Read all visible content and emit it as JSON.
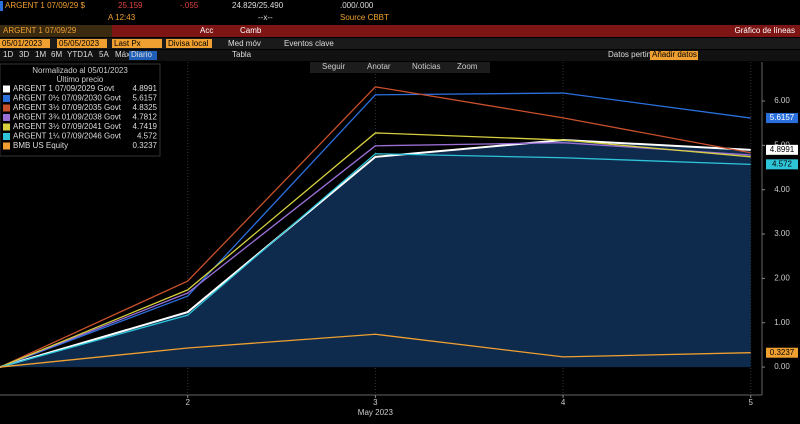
{
  "ui": {
    "quote": {
      "ticker": "ARGENT 1 07/09/29 $",
      "price": "25.159",
      "change": "-.055",
      "bid_ask": "24.829/25.490",
      "yield": ".000/.000",
      "time": "A 12:43",
      "size": "--x--",
      "source": "Source CBBT"
    },
    "toolbar": {
      "security": "ARGENT 1 07/09/29",
      "actions": "Acc",
      "change": "Camb",
      "view": "Gráfico de líneas"
    },
    "settings": {
      "start": "05/01/2023",
      "end": "05/05/2023",
      "field": "Last Px",
      "currency": "Divisa local",
      "moving_avg": "Med móv",
      "events": "Eventos clave"
    },
    "periods": [
      "1D",
      "3D",
      "1M",
      "6M",
      "YTD",
      "1A",
      "5A",
      "Máx",
      "Diario"
    ],
    "table": "Tabla",
    "relevant": "Datos pertinent",
    "add_data": "Añadir datos",
    "chart_tools": [
      "Seguir",
      "Anotar",
      "Noticias",
      "Zoom"
    ],
    "legend_title": "Normalizado al 05/01/2023",
    "legend_subtitle": "Último precio"
  },
  "chart_data": {
    "type": "line",
    "xlabel": "May 2023",
    "x": [
      1,
      2,
      3,
      4,
      5
    ],
    "xlim": [
      1,
      5.06
    ],
    "xticks": [
      2,
      3,
      4,
      5
    ],
    "ylim": [
      -0.63,
      6.88
    ],
    "yticks": [
      {
        "value": 0,
        "label": "0.00"
      },
      {
        "value": 1,
        "label": "1.00"
      },
      {
        "value": 2,
        "label": "2.00"
      },
      {
        "value": 3,
        "label": "3.00"
      },
      {
        "value": 4,
        "label": "4.00"
      },
      {
        "value": 5,
        "label": "5.00"
      },
      {
        "value": 6,
        "label": "6.00"
      }
    ],
    "grid": "x",
    "area_color": "#0e2a4c",
    "series": [
      {
        "name": "ARGENT 1 07/09/2029 Govt",
        "color": "#ffffff",
        "values": [
          0,
          1.24,
          4.74,
          5.12,
          4.8991
        ],
        "area": true,
        "end_label": true
      },
      {
        "name": "ARGENT 0½ 07/09/2030 Govt",
        "color": "#2a6fdc",
        "values": [
          0,
          1.6,
          6.14,
          6.18,
          5.6157
        ],
        "end_label": true
      },
      {
        "name": "ARGENT 3½ 07/09/2035 Govt",
        "color": "#c9502c",
        "values": [
          0,
          1.94,
          6.32,
          5.62,
          4.8325
        ]
      },
      {
        "name": "ARGENT 3¾ 01/09/2038 Govt",
        "color": "#9a6fd6",
        "values": [
          0,
          1.67,
          4.99,
          5.06,
          4.7812
        ]
      },
      {
        "name": "ARGENT 3½ 07/09/2041 Govt",
        "color": "#d6cf3e",
        "values": [
          0,
          1.74,
          5.28,
          5.12,
          4.7419
        ]
      },
      {
        "name": "ARGENT 1¼ 07/09/2046 Govt",
        "color": "#2ec4d8",
        "values": [
          0,
          1.17,
          4.81,
          4.72,
          4.572
        ],
        "end_label": true
      },
      {
        "name": "BMB US Equity",
        "color": "#f0a030",
        "values": [
          0,
          0.43,
          0.74,
          0.23,
          0.3237
        ],
        "end_label": true
      }
    ]
  }
}
